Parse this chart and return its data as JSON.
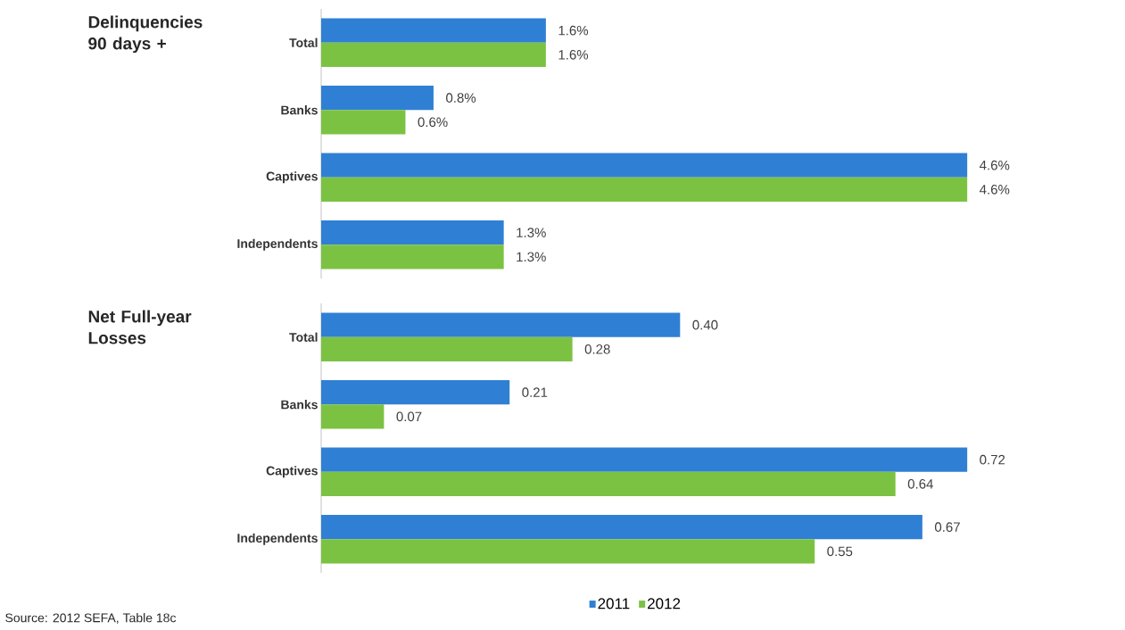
{
  "chart_data": [
    {
      "type": "bar",
      "orientation": "horizontal",
      "title": "Delinquencies 90 days +",
      "categories": [
        "Total",
        "Banks",
        "Captives",
        "Independents"
      ],
      "series": [
        {
          "color": "#2f80d4",
          "values": [
            1.6,
            0.8,
            4.6,
            1.3
          ],
          "value_labels": [
            "1.6%",
            "0.8%",
            "4.6%",
            "1.3%"
          ]
        },
        {
          "color": "#7cc242",
          "values": [
            1.6,
            0.6,
            4.6,
            1.3
          ],
          "value_labels": [
            "1.6%",
            "0.6%",
            "4.6%",
            "1.3%"
          ]
        }
      ],
      "tick_labels": "y",
      "legend": false
    },
    {
      "type": "bar",
      "orientation": "horizontal",
      "title": "Net Full-year Losses",
      "categories": [
        "Total",
        "Banks",
        "Captives",
        "Independents"
      ],
      "series": [
        {
          "name": "2011",
          "color": "#2f80d4",
          "values": [
            0.4,
            0.21,
            0.72,
            0.67
          ],
          "value_labels": [
            "0.40",
            "0.21",
            "0.72",
            "0.67"
          ]
        },
        {
          "name": "2012",
          "color": "#7cc242",
          "values": [
            0.28,
            0.07,
            0.64,
            0.55
          ],
          "value_labels": [
            "0.28",
            "0.07",
            "0.64",
            "0.55"
          ]
        }
      ],
      "tick_labels": "y",
      "legend": "bottom",
      "annotations": [
        "Source: 2012 SEFA, Table 18c"
      ]
    }
  ]
}
